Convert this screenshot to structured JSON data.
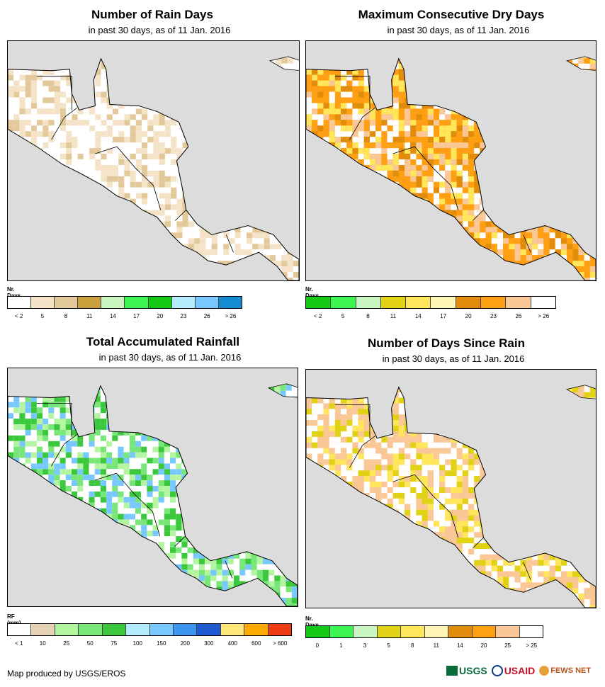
{
  "panels": [
    {
      "id": "rain-days",
      "title": "Number of Rain Days",
      "subtitle": "in past 30 days, as of 11 Jan. 2016",
      "legend_title": "Nr. Days",
      "legend_colors": [
        "#ffffff",
        "#f5e3c8",
        "#e3c99a",
        "#c9a03c",
        "#c8f5c0",
        "#3cf550",
        "#14c814",
        "#b4ebff",
        "#78c8ff",
        "#148cd2"
      ],
      "legend_ticks": [
        "< 2",
        "5",
        "8",
        "11",
        "14",
        "17",
        "20",
        "23",
        "26",
        "> 26"
      ],
      "palette": [
        "#ffffff",
        "#f5e3c8",
        "#e3c99a",
        "#ffffff",
        "#ffffff",
        "#f5e3c8"
      ]
    },
    {
      "id": "dry-days",
      "title": "Maximum Consecutive Dry Days",
      "subtitle": "in past 30 days, as of 11 Jan. 2016",
      "legend_title": "Nr. Days",
      "legend_colors": [
        "#14c814",
        "#3cf550",
        "#c8f5c0",
        "#e1d214",
        "#ffe65a",
        "#fff5b4",
        "#e18c0a",
        "#ff9f14",
        "#fac896",
        "#ffffff"
      ],
      "legend_ticks": [
        "< 2",
        "5",
        "8",
        "11",
        "14",
        "17",
        "20",
        "23",
        "26",
        "> 26"
      ],
      "palette": [
        "#ff9f14",
        "#e18c0a",
        "#fac896",
        "#ffe65a",
        "#ffffff",
        "#ff9f14"
      ]
    },
    {
      "id": "total-rainfall",
      "title": "Total Accumulated Rainfall",
      "subtitle": "in past 30 days, as of 11 Jan. 2016",
      "legend_title": "RF (mm)",
      "legend_colors": [
        "#ffffff",
        "#e6d2b4",
        "#b4f5a0",
        "#78e678",
        "#3cc83c",
        "#b4ebff",
        "#78c8ff",
        "#3c96f0",
        "#1e5ad2",
        "#ffe678",
        "#ffaa00",
        "#f03c14"
      ],
      "legend_ticks": [
        "< 1",
        "10",
        "25",
        "50",
        "75",
        "100",
        "150",
        "200",
        "300",
        "400",
        "600",
        "> 600"
      ],
      "palette": [
        "#ffffff",
        "#b4f5a0",
        "#78e678",
        "#3cc83c",
        "#ffffff",
        "#78c8ff"
      ]
    },
    {
      "id": "days-since-rain",
      "title": "Number of Days Since Rain",
      "subtitle": "in past 30 days, as of 11 Jan. 2016",
      "legend_title": "Nr. Days",
      "legend_colors": [
        "#14c814",
        "#3cf550",
        "#c8f5c0",
        "#e1d214",
        "#ffe65a",
        "#fff5b4",
        "#e18c0a",
        "#ff9f14",
        "#fac896",
        "#ffffff"
      ],
      "legend_ticks": [
        "0",
        "1",
        "3",
        "5",
        "8",
        "11",
        "14",
        "20",
        "25",
        "> 25"
      ],
      "palette": [
        "#fac896",
        "#ffe65a",
        "#ffffff",
        "#fac896",
        "#e1d214",
        "#ffffff"
      ]
    }
  ],
  "credit": "Map produced by USGS/EROS",
  "logos": [
    "USGS",
    "USAID",
    "FEWS NET"
  ]
}
